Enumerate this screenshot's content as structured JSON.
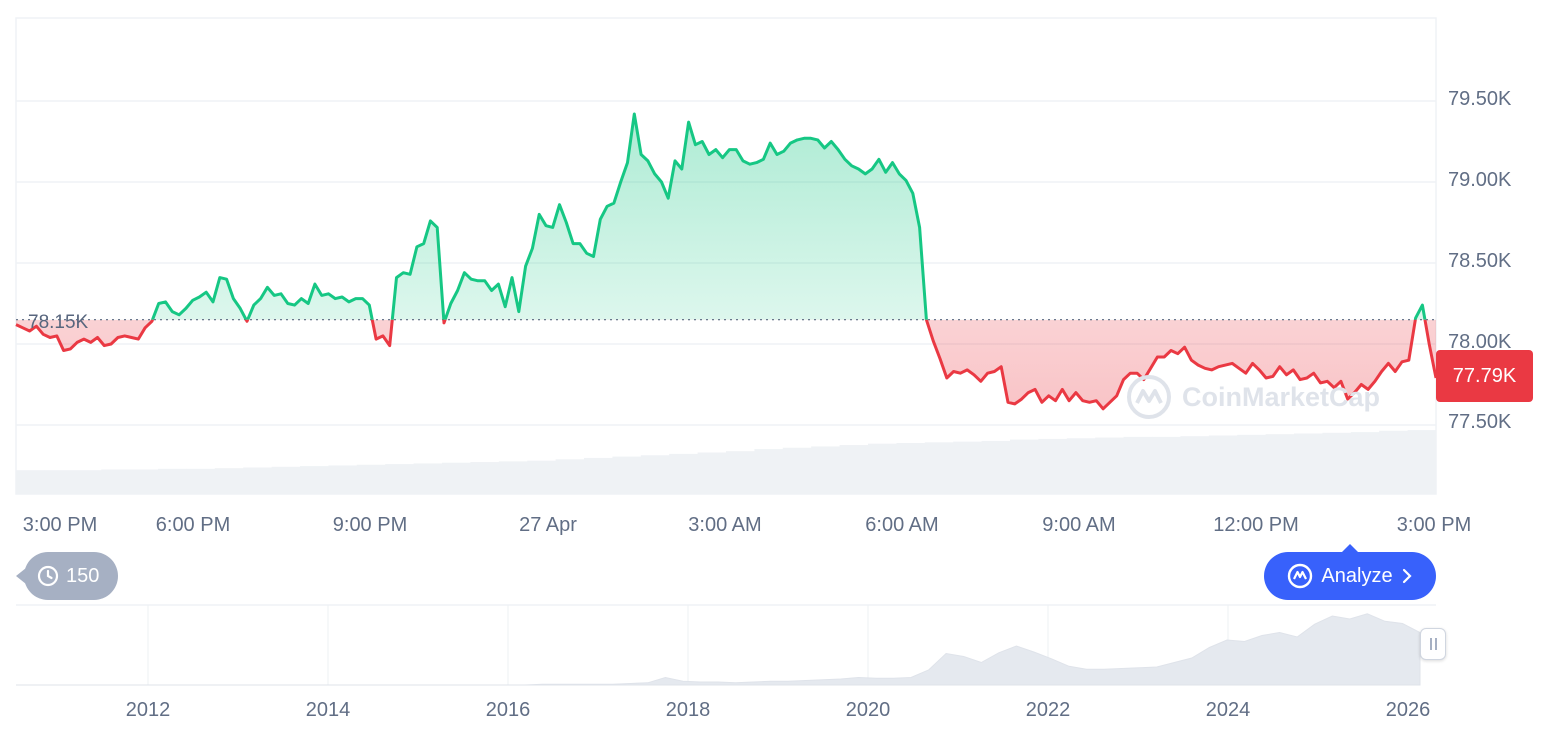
{
  "chart_data": [
    {
      "type": "line",
      "title": "",
      "xlabel": "",
      "ylabel": "",
      "x_ticks": [
        "3:00 PM",
        "6:00 PM",
        "9:00 PM",
        "27 Apr",
        "3:00 AM",
        "6:00 AM",
        "9:00 AM",
        "12:00 PM",
        "3:00 PM"
      ],
      "y_ticks": [
        "79.50K",
        "79.00K",
        "78.50K",
        "78.00K",
        "77.50K"
      ],
      "ylim": [
        77250,
        80000
      ],
      "reference_label": "78.15K",
      "reference_value": 78150,
      "current_label": "77.79K",
      "current_value": 77790,
      "colors": {
        "above": "#16c784",
        "below": "#ea3943",
        "grid": "#eff2f5",
        "volume": "#eff2f5"
      },
      "series": [
        {
          "values": [
            78120,
            78100,
            78080,
            78110,
            78060,
            78040,
            78050,
            77960,
            77970,
            78010,
            78030,
            78010,
            78040,
            77990,
            78000,
            78040,
            78050,
            78040,
            78030,
            78100,
            78140,
            78250,
            78260,
            78200,
            78180,
            78220,
            78270,
            78290,
            78320,
            78260,
            78410,
            78400,
            78280,
            78220,
            78140,
            78240,
            78280,
            78350,
            78300,
            78310,
            78250,
            78240,
            78280,
            78250,
            78370,
            78300,
            78310,
            78280,
            78290,
            78260,
            78280,
            78280,
            78240,
            78030,
            78050,
            77990,
            78410,
            78440,
            78430,
            78600,
            78620,
            78760,
            78720,
            78130,
            78250,
            78330,
            78440,
            78400,
            78390,
            78390,
            78330,
            78370,
            78230,
            78410,
            78200,
            78480,
            78590,
            78800,
            78730,
            78720,
            78860,
            78750,
            78620,
            78620,
            78560,
            78540,
            78770,
            78850,
            78870,
            79000,
            79120,
            79420,
            79170,
            79130,
            79050,
            79000,
            78900,
            79130,
            79080,
            79370,
            79230,
            79250,
            79170,
            79200,
            79150,
            79200,
            79200,
            79130,
            79110,
            79120,
            79140,
            79240,
            79170,
            79190,
            79240,
            79260,
            79270,
            79270,
            79260,
            79210,
            79250,
            79200,
            79140,
            79100,
            79080,
            79050,
            79080,
            79140,
            79060,
            79120,
            79050,
            79010,
            78930,
            78720,
            78150,
            78020,
            77910,
            77790,
            77830,
            77820,
            77840,
            77810,
            77770,
            77820,
            77830,
            77860,
            77640,
            77630,
            77660,
            77700,
            77720,
            77640,
            77680,
            77650,
            77720,
            77650,
            77700,
            77650,
            77640,
            77650,
            77600,
            77640,
            77680,
            77780,
            77820,
            77820,
            77780,
            77850,
            77920,
            77920,
            77960,
            77940,
            77980,
            77900,
            77870,
            77850,
            77840,
            77860,
            77870,
            77880,
            77850,
            77820,
            77880,
            77840,
            77790,
            77800,
            77860,
            77810,
            77840,
            77780,
            77790,
            77820,
            77760,
            77770,
            77730,
            77770,
            77660,
            77700,
            77750,
            77720,
            77770,
            77830,
            77880,
            77830,
            77890,
            77900,
            78160,
            78240,
            78000,
            77790
          ],
          "color_above": "#16c784",
          "color_below": "#ea3943"
        }
      ],
      "volume_values": [
        0.35,
        0.35,
        0.35,
        0.36,
        0.36,
        0.37,
        0.37,
        0.38,
        0.39,
        0.4,
        0.41,
        0.42,
        0.43,
        0.44,
        0.45,
        0.46,
        0.47,
        0.48,
        0.49,
        0.51,
        0.53,
        0.55,
        0.57,
        0.59,
        0.61,
        0.63,
        0.66,
        0.68,
        0.7,
        0.72,
        0.74,
        0.75,
        0.76,
        0.77,
        0.78,
        0.8,
        0.81,
        0.82,
        0.83,
        0.84,
        0.84,
        0.85,
        0.86,
        0.87,
        0.88,
        0.89,
        0.9,
        0.91,
        0.93,
        0.94
      ]
    },
    {
      "type": "area",
      "title": "",
      "x_ticks": [
        "2012",
        "2014",
        "2016",
        "2018",
        "2020",
        "2022",
        "2024",
        "2026"
      ],
      "history_values": [
        0,
        0,
        0,
        0,
        0,
        0,
        0,
        0,
        0,
        0,
        0,
        0,
        0,
        0,
        0,
        0,
        0,
        0,
        0,
        0,
        0,
        0,
        0,
        0,
        0,
        0,
        0,
        0,
        0,
        0,
        0.01,
        0.01,
        0.01,
        0.01,
        0.01,
        0.02,
        0.03,
        0.1,
        0.05,
        0.04,
        0.04,
        0.03,
        0.04,
        0.05,
        0.05,
        0.06,
        0.07,
        0.08,
        0.1,
        0.09,
        0.09,
        0.1,
        0.2,
        0.42,
        0.38,
        0.3,
        0.43,
        0.52,
        0.44,
        0.35,
        0.25,
        0.21,
        0.21,
        0.22,
        0.23,
        0.24,
        0.3,
        0.36,
        0.5,
        0.6,
        0.58,
        0.66,
        0.7,
        0.64,
        0.81,
        0.92,
        0.88,
        0.95,
        0.85,
        0.82,
        0.7
      ]
    }
  ],
  "toolbar": {
    "history_label": "150",
    "analyze_label": "Analyze"
  },
  "watermark": "CoinMarketCap",
  "icons": {
    "history": "history-icon",
    "analyze": "analyze-icon",
    "chevron": "chevron-right-icon",
    "handle": "range-handle-icon"
  }
}
